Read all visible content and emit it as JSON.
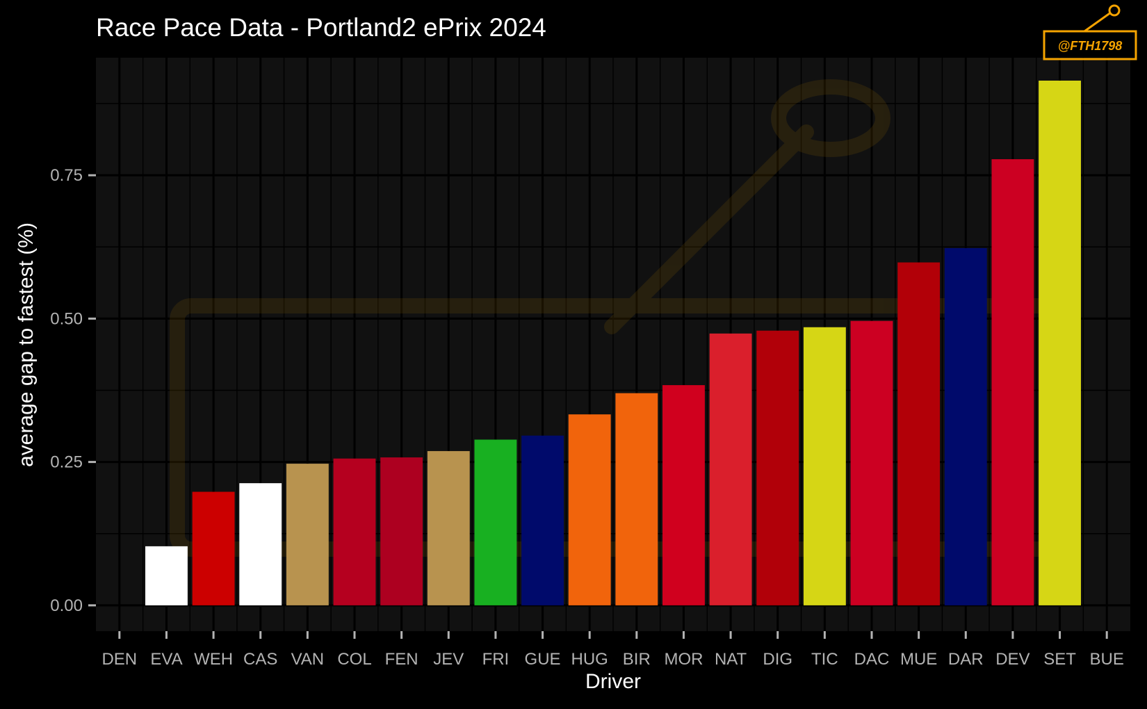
{
  "watermark": "@FTH1798",
  "chart_data": {
    "type": "bar",
    "title": "Race Pace Data - Portland2 ePrix 2024",
    "xlabel": "Driver",
    "ylabel": "average gap to fastest (%)",
    "categories": [
      "DEN",
      "EVA",
      "WEH",
      "CAS",
      "VAN",
      "COL",
      "FEN",
      "JEV",
      "FRI",
      "GUE",
      "HUG",
      "BIR",
      "MOR",
      "NAT",
      "DIG",
      "TIC",
      "DAC",
      "MUE",
      "DAR",
      "DEV",
      "SET",
      "BUE"
    ],
    "values": [
      0.0,
      0.103,
      0.198,
      0.213,
      0.247,
      0.256,
      0.258,
      0.269,
      0.289,
      0.296,
      0.333,
      0.37,
      0.384,
      0.474,
      0.479,
      0.485,
      0.496,
      0.598,
      0.623,
      0.778,
      0.915,
      0.0
    ],
    "colors": [
      "#ffffff",
      "#ffffff",
      "#cc0000",
      "#ffffff",
      "#b8934f",
      "#b5001f",
      "#ad0020",
      "#b8934f",
      "#18b021",
      "#000a6b",
      "#f1640c",
      "#f1640c",
      "#d0001e",
      "#da1f2c",
      "#b10009",
      "#d6d615",
      "#cc0022",
      "#b20008",
      "#000a6b",
      "#cc0022",
      "#d6d615",
      "#ffffff"
    ],
    "yticks": [
      0.0,
      0.25,
      0.5,
      0.75
    ],
    "ytick_labels": [
      "0.00",
      "0.25",
      "0.50",
      "0.75"
    ],
    "ylim": [
      -0.045,
      0.955
    ],
    "grid": true,
    "legend": "none"
  }
}
